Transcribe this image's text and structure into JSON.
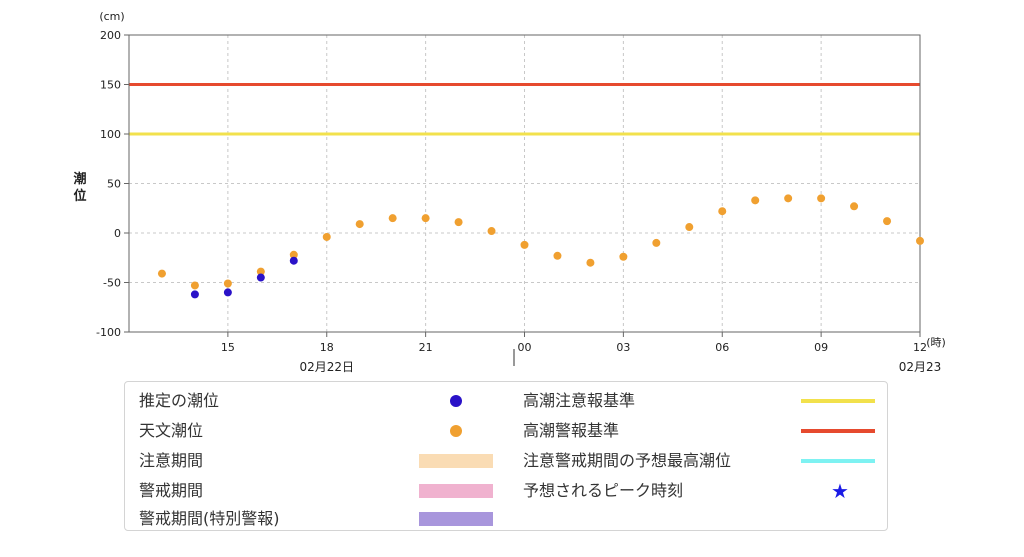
{
  "chart_data": {
    "type": "scatter",
    "ylabel": "潮位",
    "y_unit": "(cm)",
    "x_unit": "(時)",
    "ylim": [
      -100,
      200
    ],
    "yticks": [
      200,
      150,
      100,
      50,
      0,
      -50,
      -100
    ],
    "x_hour_range": [
      12,
      36
    ],
    "xtick_hours": [
      15,
      18,
      21,
      24,
      27,
      30,
      33,
      36
    ],
    "xtick_labels": [
      "15",
      "18",
      "21",
      "00",
      "03",
      "06",
      "09",
      "12"
    ],
    "date_labels": [
      {
        "hour": 18,
        "text": "02月22日"
      },
      {
        "hour": 36,
        "text": "02月23"
      }
    ],
    "reference_lines": [
      {
        "name": "高潮警報基準",
        "value": 150,
        "color": "#e64a2e"
      },
      {
        "name": "高潮注意報基準",
        "value": 100,
        "color": "#f2e14c"
      }
    ],
    "series": [
      {
        "name": "天文潮位",
        "color": "#f0a030",
        "points": [
          {
            "h": 13,
            "v": -41
          },
          {
            "h": 14,
            "v": -53
          },
          {
            "h": 15,
            "v": -51
          },
          {
            "h": 16,
            "v": -39
          },
          {
            "h": 17,
            "v": -22
          },
          {
            "h": 18,
            "v": -4
          },
          {
            "h": 19,
            "v": 9
          },
          {
            "h": 20,
            "v": 15
          },
          {
            "h": 21,
            "v": 15
          },
          {
            "h": 22,
            "v": 11
          },
          {
            "h": 23,
            "v": 2
          },
          {
            "h": 24,
            "v": -12
          },
          {
            "h": 25,
            "v": -23
          },
          {
            "h": 26,
            "v": -30
          },
          {
            "h": 27,
            "v": -24
          },
          {
            "h": 28,
            "v": -10
          },
          {
            "h": 29,
            "v": 6
          },
          {
            "h": 30,
            "v": 22
          },
          {
            "h": 31,
            "v": 33
          },
          {
            "h": 32,
            "v": 35
          },
          {
            "h": 33,
            "v": 35
          },
          {
            "h": 34,
            "v": 27
          },
          {
            "h": 35,
            "v": 12
          },
          {
            "h": 36,
            "v": -8
          }
        ]
      },
      {
        "name": "推定の潮位",
        "color": "#2a12c8",
        "points": [
          {
            "h": 14,
            "v": -62
          },
          {
            "h": 15,
            "v": -60
          },
          {
            "h": 16,
            "v": -45
          },
          {
            "h": 17,
            "v": -28
          }
        ]
      }
    ]
  },
  "legend": {
    "items": [
      {
        "label": "推定の潮位",
        "kind": "dot",
        "color": "#2a12c8"
      },
      {
        "label": "天文潮位",
        "kind": "dot",
        "color": "#f0a030"
      },
      {
        "label": "注意期間",
        "kind": "band",
        "color": "#fadcb4"
      },
      {
        "label": "警戒期間",
        "kind": "band",
        "color": "#f0b2cf"
      },
      {
        "label": "警戒期間(特別警報)",
        "kind": "band",
        "color": "#a896dc"
      },
      {
        "label": "高潮注意報基準",
        "kind": "line",
        "color": "#f2e14c"
      },
      {
        "label": "高潮警報基準",
        "kind": "line",
        "color": "#e64a2e"
      },
      {
        "label": "注意警戒期間の予想最高潮位",
        "kind": "line",
        "color": "#7ef2f2"
      },
      {
        "label": "予想されるピーク時刻",
        "kind": "star",
        "color": "#1a1ae6",
        "symbol": "★"
      }
    ]
  }
}
